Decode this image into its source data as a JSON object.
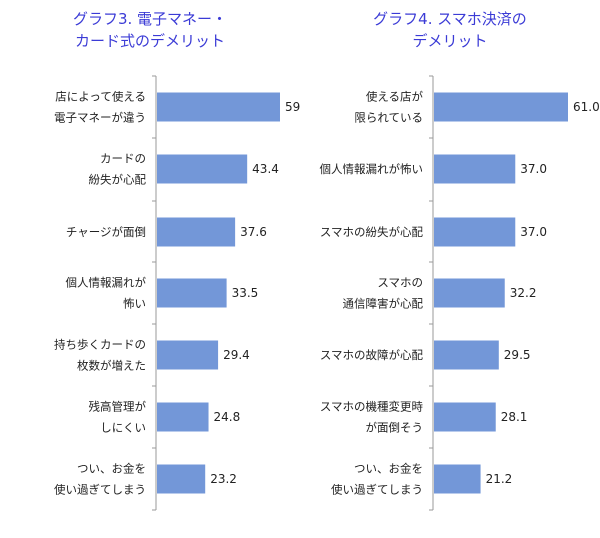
{
  "chart_data": [
    {
      "type": "bar",
      "orientation": "horizontal",
      "title_lines": [
        "グラフ3. 電子マネー・",
        "カード式のデメリット"
      ],
      "categories": [
        [
          "店によって使える",
          "電子マネーが違う"
        ],
        [
          "カードの",
          "紛失が心配"
        ],
        [
          "チャージが面倒"
        ],
        [
          "個人情報漏れが",
          "怖い"
        ],
        [
          "持ち歩くカードの",
          "枚数が増えた"
        ],
        [
          "残高管理が",
          "しにくい"
        ],
        [
          "つい、お金を",
          "使い過ぎてしまう"
        ]
      ],
      "values": [
        59.2,
        43.4,
        37.6,
        33.5,
        29.4,
        24.8,
        23.2
      ],
      "value_labels": [
        "59.2",
        "43.4",
        "37.6",
        "33.5",
        "29.4",
        "24.8",
        "23.2"
      ],
      "xlim": [
        0,
        70
      ],
      "bar_color": "#7397d8",
      "grid": false
    },
    {
      "type": "bar",
      "orientation": "horizontal",
      "title_lines": [
        "グラフ4. スマホ決済の",
        "デメリット"
      ],
      "categories": [
        [
          "使える店が",
          "限られている"
        ],
        [
          "個人情報漏れが怖い"
        ],
        [
          "スマホの紛失が心配"
        ],
        [
          "スマホの",
          "通信障害が心配"
        ],
        [
          "スマホの故障が心配"
        ],
        [
          "スマホの機種変更時",
          "が面倒そう"
        ],
        [
          "つい、お金を",
          "使い過ぎてしまう"
        ]
      ],
      "values": [
        61.0,
        37.0,
        37.0,
        32.2,
        29.5,
        28.1,
        21.2
      ],
      "value_labels": [
        "61.0",
        "37.0",
        "37.0",
        "32.2",
        "29.5",
        "28.1",
        "21.2"
      ],
      "xlim": [
        0,
        70
      ],
      "bar_color": "#7397d8",
      "grid": false
    }
  ],
  "title_color": "#3b3bd6"
}
